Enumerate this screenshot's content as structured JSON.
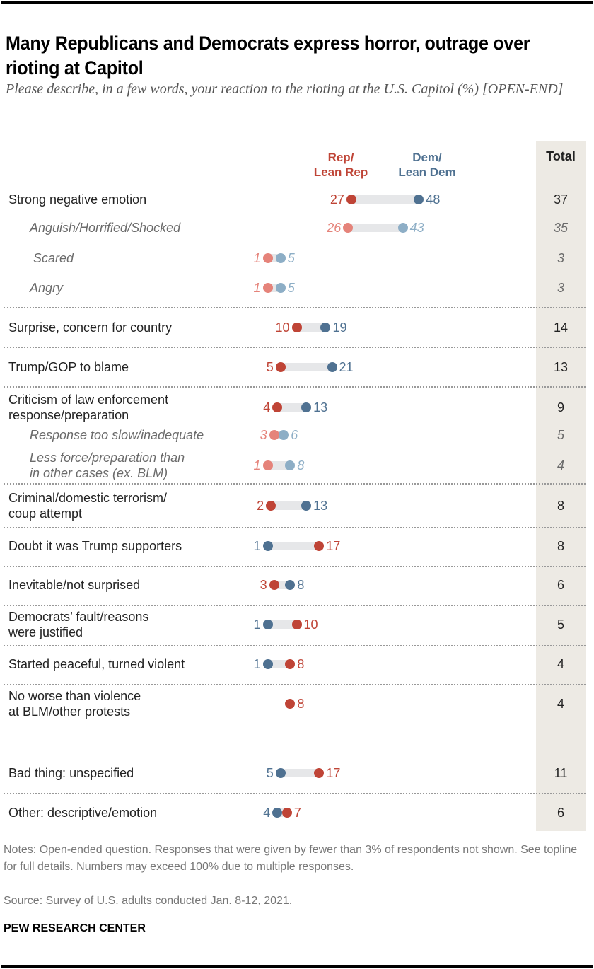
{
  "title": "Many Republicans and Democrats express horror, outrage over rioting at Capitol",
  "subtitle": "Please describe, in a few words, your reaction to the rioting at the U.S. Capitol (%) [OPEN-END]",
  "notes": "Notes: Open-ended question. Responses that were given by fewer than 3% of respondents not shown. See topline for full details. Numbers may exceed 100% due to multiple responses.",
  "source": "Source: Survey of U.S. adults conducted Jan. 8-12, 2021.",
  "brand": "PEW RESEARCH CENTER",
  "colors": {
    "rep": "#BF4436",
    "dem": "#4F7191",
    "rep_light": "#E5837A",
    "dem_light": "#8DAEC6",
    "track": "#E6E7E9",
    "total_bg": "#EDEAE4"
  },
  "chart_data": {
    "type": "dot-plot",
    "title": "Many Republicans and Democrats express horror, outrage over rioting at Capitol",
    "subtitle": "Please describe, in a few words, your reaction to the rioting at the U.S. Capitol (%) [OPEN-END]",
    "unit": "%",
    "legend": [
      {
        "key": "rep",
        "label_line1": "Rep/",
        "label_line2": "Lean Rep"
      },
      {
        "key": "dem",
        "label_line1": "Dem/",
        "label_line2": "Lean Dem"
      }
    ],
    "total_header": "Total",
    "xlim": [
      0,
      50
    ],
    "rows": [
      {
        "label": [
          "Strong negative emotion"
        ],
        "rep": 27,
        "dem": 48,
        "total": 37,
        "sub": false
      },
      {
        "label": [
          "Anguish/Horrified/Shocked"
        ],
        "rep": 26,
        "dem": 43,
        "total": 35,
        "sub": true
      },
      {
        "label": [
          "Scared"
        ],
        "rep": 1,
        "dem": 5,
        "total": 3,
        "sub": true
      },
      {
        "label": [
          "Angry"
        ],
        "rep": 1,
        "dem": 5,
        "total": 3,
        "sub": true
      },
      {
        "label": [
          "Surprise, concern for country"
        ],
        "rep": 10,
        "dem": 19,
        "total": 14,
        "sub": false
      },
      {
        "label": [
          "Trump/GOP to blame"
        ],
        "rep": 5,
        "dem": 21,
        "total": 13,
        "sub": false
      },
      {
        "label": [
          "Criticism of law enforcement",
          "response/preparation"
        ],
        "rep": 4,
        "dem": 13,
        "total": 9,
        "sub": false
      },
      {
        "label": [
          "Response too slow/inadequate"
        ],
        "rep": 3,
        "dem": 6,
        "total": 5,
        "sub": true
      },
      {
        "label": [
          "Less force/preparation than",
          "in other cases (ex. BLM)"
        ],
        "rep": 1,
        "dem": 8,
        "total": 4,
        "sub": true
      },
      {
        "label": [
          "Criminal/domestic terrorism/",
          "coup attempt"
        ],
        "rep": 2,
        "dem": 13,
        "total": 8,
        "sub": false
      },
      {
        "label": [
          "Doubt it was Trump supporters"
        ],
        "rep": 17,
        "dem": 1,
        "total": 8,
        "sub": false
      },
      {
        "label": [
          "Inevitable/not surprised"
        ],
        "rep": 3,
        "dem": 8,
        "total": 6,
        "sub": false
      },
      {
        "label": [
          "Democrats’ fault/reasons",
          "were justified"
        ],
        "rep": 10,
        "dem": 1,
        "total": 5,
        "sub": false
      },
      {
        "label": [
          "Started peaceful, turned violent"
        ],
        "rep": 8,
        "dem": 1,
        "total": 4,
        "sub": false
      },
      {
        "label": [
          "No worse than violence",
          "at BLM/other protests"
        ],
        "rep": 8,
        "dem": null,
        "total": 4,
        "sub": false
      },
      {
        "label": [
          "Bad thing: unspecified"
        ],
        "rep": 17,
        "dem": 5,
        "total": 11,
        "sub": false
      },
      {
        "label": [
          "Other: descriptive/emotion"
        ],
        "rep": 7,
        "dem": 4,
        "total": 6,
        "sub": false
      }
    ]
  }
}
